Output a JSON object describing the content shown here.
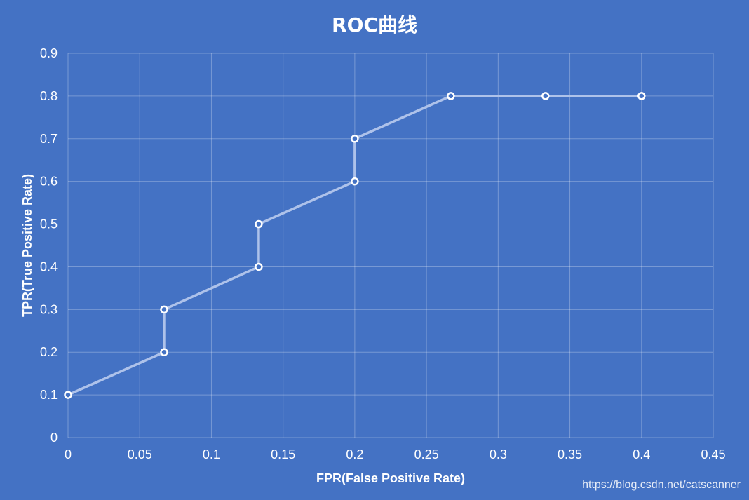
{
  "chart_data": {
    "type": "line",
    "title": "ROC曲线",
    "xlabel": "FPR(False Positive Rate)",
    "ylabel": "TPR(True Positive Rate)",
    "xlim": [
      0,
      0.45
    ],
    "ylim": [
      0,
      0.9
    ],
    "xticks": [
      "0",
      "0.05",
      "0.1",
      "0.15",
      "0.2",
      "0.25",
      "0.3",
      "0.35",
      "0.4",
      "0.45"
    ],
    "yticks": [
      "0",
      "0.1",
      "0.2",
      "0.3",
      "0.4",
      "0.5",
      "0.6",
      "0.7",
      "0.8",
      "0.9"
    ],
    "grid": true,
    "legend": "none",
    "series": [
      {
        "x": [
          0,
          0.067,
          0.067,
          0.133,
          0.133,
          0.2,
          0.2,
          0.267,
          0.333,
          0.4
        ],
        "y": [
          0.1,
          0.2,
          0.3,
          0.4,
          0.5,
          0.6,
          0.7,
          0.8,
          0.8,
          0.8
        ]
      }
    ]
  },
  "colors": {
    "background": "#4472c4",
    "line": "#aec2ea",
    "marker_edge": "#ffffff",
    "text": "#ffffff"
  },
  "watermark": "https://blog.csdn.net/catscanner"
}
